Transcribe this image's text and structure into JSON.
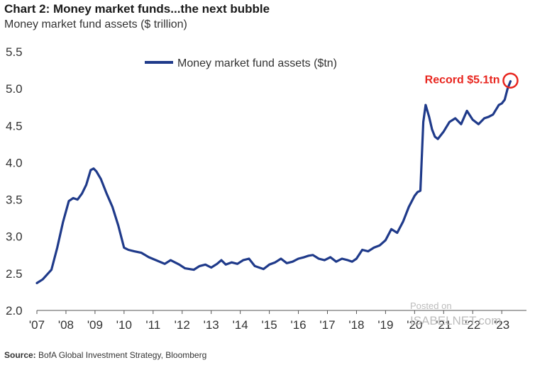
{
  "header": {
    "title": "Chart 2: Money market funds...the next bubble",
    "subtitle": "Money market fund assets ($ trillion)"
  },
  "footer": {
    "source_label": "Source:",
    "source_text": "BofA Global Investment Strategy, Bloomberg"
  },
  "watermark": {
    "line1": "Posted on",
    "line2": "ISABELNET.com"
  },
  "colors": {
    "series": "#1f3a8a",
    "annotation": "#e8261f",
    "axis": "#555555"
  },
  "chart_data": {
    "type": "line",
    "title": "Chart 2: Money market funds...the next bubble",
    "ylabel": "Money market fund assets ($ trillion)",
    "xlabel": "",
    "ylim": [
      2.0,
      5.5
    ],
    "xlim": [
      2007.0,
      2023.85
    ],
    "yticks": [
      "2.0",
      "2.5",
      "3.0",
      "3.5",
      "4.0",
      "4.5",
      "5.0",
      "5.5"
    ],
    "xticks": [
      "'07",
      "'08",
      "'09",
      "'10",
      "'11",
      "'12",
      "'13",
      "'14",
      "'15",
      "'16",
      "'17",
      "'18",
      "'19",
      "'20",
      "'21",
      "'22",
      "'23"
    ],
    "legend": "top-center",
    "series": [
      {
        "name": "Money market fund assets ($tn)",
        "x": [
          2007.0,
          2007.2,
          2007.5,
          2007.7,
          2007.9,
          2008.1,
          2008.25,
          2008.4,
          2008.55,
          2008.7,
          2008.85,
          2008.95,
          2009.05,
          2009.2,
          2009.4,
          2009.6,
          2009.8,
          2010.0,
          2010.15,
          2010.35,
          2010.6,
          2010.85,
          2011.1,
          2011.4,
          2011.6,
          2011.9,
          2012.1,
          2012.4,
          2012.6,
          2012.8,
          2013.0,
          2013.2,
          2013.35,
          2013.5,
          2013.7,
          2013.9,
          2014.1,
          2014.3,
          2014.5,
          2014.8,
          2015.0,
          2015.2,
          2015.4,
          2015.6,
          2015.8,
          2016.0,
          2016.2,
          2016.35,
          2016.5,
          2016.7,
          2016.9,
          2017.1,
          2017.3,
          2017.5,
          2017.7,
          2017.85,
          2018.0,
          2018.2,
          2018.4,
          2018.6,
          2018.8,
          2019.0,
          2019.2,
          2019.4,
          2019.6,
          2019.8,
          2020.0,
          2020.1,
          2020.2,
          2020.3,
          2020.38,
          2020.5,
          2020.6,
          2020.7,
          2020.8,
          2021.0,
          2021.2,
          2021.4,
          2021.6,
          2021.8,
          2022.0,
          2022.2,
          2022.4,
          2022.55,
          2022.7,
          2022.9,
          2023.0,
          2023.1,
          2023.2,
          2023.3
        ],
        "values": [
          2.37,
          2.42,
          2.55,
          2.85,
          3.2,
          3.48,
          3.52,
          3.5,
          3.58,
          3.7,
          3.9,
          3.92,
          3.88,
          3.78,
          3.58,
          3.4,
          3.15,
          2.85,
          2.82,
          2.8,
          2.78,
          2.72,
          2.68,
          2.63,
          2.68,
          2.62,
          2.57,
          2.55,
          2.6,
          2.62,
          2.58,
          2.63,
          2.68,
          2.62,
          2.65,
          2.63,
          2.68,
          2.7,
          2.6,
          2.56,
          2.62,
          2.65,
          2.7,
          2.64,
          2.66,
          2.7,
          2.72,
          2.74,
          2.75,
          2.7,
          2.68,
          2.72,
          2.66,
          2.7,
          2.68,
          2.66,
          2.7,
          2.82,
          2.8,
          2.85,
          2.88,
          2.95,
          3.1,
          3.05,
          3.2,
          3.4,
          3.55,
          3.6,
          3.62,
          4.55,
          4.78,
          4.62,
          4.45,
          4.35,
          4.32,
          4.42,
          4.55,
          4.6,
          4.52,
          4.7,
          4.58,
          4.52,
          4.6,
          4.62,
          4.65,
          4.78,
          4.8,
          4.85,
          5.0,
          5.1
        ]
      }
    ],
    "annotations": [
      {
        "text": "Record $5.1tn",
        "x": 2023.3,
        "y": 5.1
      }
    ]
  }
}
